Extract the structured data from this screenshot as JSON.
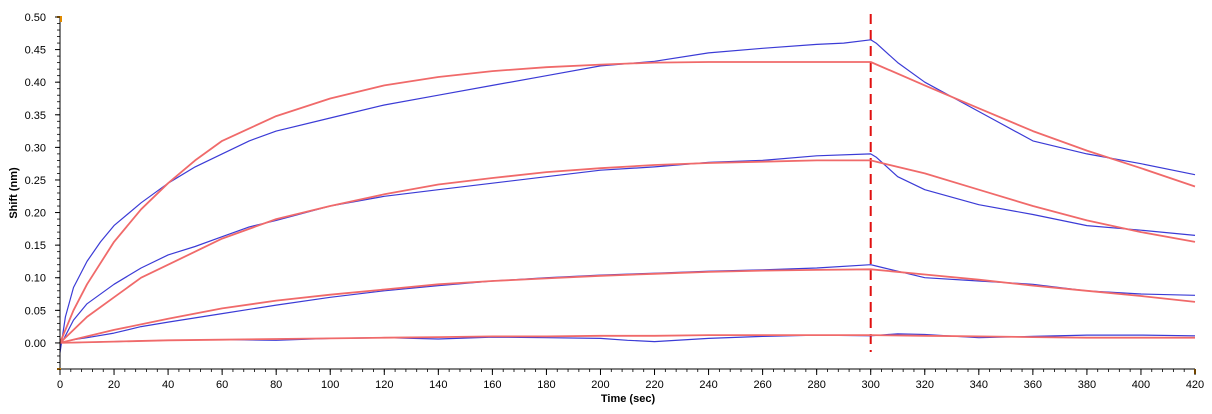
{
  "chart_data": {
    "type": "line",
    "title": "",
    "xlabel": "Time (sec)",
    "ylabel": "Shift (nm)",
    "xlim": [
      0,
      420
    ],
    "ylim": [
      -0.04,
      0.5
    ],
    "x_ticks": [
      0,
      20,
      40,
      60,
      80,
      100,
      120,
      140,
      160,
      180,
      200,
      220,
      240,
      260,
      280,
      300,
      320,
      340,
      360,
      380,
      400,
      420
    ],
    "y_ticks": [
      0.0,
      0.05,
      0.1,
      0.15,
      0.2,
      0.25,
      0.3,
      0.35,
      0.4,
      0.45,
      0.5
    ],
    "y_tick_labels": [
      "0.00",
      "0.05",
      "0.10",
      "0.15",
      "0.20",
      "0.25",
      "0.30",
      "0.35",
      "0.40",
      "0.45",
      "0.50"
    ],
    "grid": false,
    "legend": "none",
    "vline": {
      "x": 300,
      "color": "#e01010",
      "style": "dashed"
    },
    "colors": {
      "measured": "#3b3bd6",
      "fit": "#f06a6a",
      "axis": "#000000",
      "tick_marker": "#e08a00"
    },
    "series": [
      {
        "kind": "measured",
        "x": [
          0,
          2,
          5,
          10,
          15,
          20,
          30,
          40,
          50,
          60,
          70,
          80,
          100,
          120,
          140,
          160,
          180,
          200,
          220,
          240,
          260,
          280,
          290,
          300,
          302,
          310,
          320,
          340,
          360,
          380,
          400,
          420
        ],
        "y": [
          -0.015,
          0.04,
          0.085,
          0.125,
          0.155,
          0.18,
          0.215,
          0.245,
          0.27,
          0.29,
          0.31,
          0.325,
          0.345,
          0.365,
          0.38,
          0.395,
          0.41,
          0.425,
          0.432,
          0.445,
          0.452,
          0.458,
          0.46,
          0.465,
          0.46,
          0.43,
          0.4,
          0.355,
          0.31,
          0.29,
          0.275,
          0.258
        ]
      },
      {
        "kind": "fit",
        "x": [
          0,
          5,
          10,
          20,
          30,
          40,
          50,
          60,
          80,
          100,
          120,
          140,
          160,
          180,
          200,
          220,
          240,
          260,
          280,
          300,
          320,
          340,
          360,
          380,
          400,
          420
        ],
        "y": [
          0.0,
          0.05,
          0.09,
          0.155,
          0.205,
          0.245,
          0.28,
          0.31,
          0.348,
          0.375,
          0.395,
          0.408,
          0.417,
          0.423,
          0.427,
          0.43,
          0.431,
          0.431,
          0.431,
          0.431,
          0.395,
          0.36,
          0.325,
          0.295,
          0.268,
          0.24
        ]
      },
      {
        "kind": "measured",
        "x": [
          0,
          5,
          10,
          20,
          30,
          40,
          50,
          60,
          70,
          80,
          100,
          120,
          140,
          160,
          180,
          200,
          220,
          240,
          260,
          280,
          300,
          302,
          310,
          320,
          340,
          360,
          380,
          400,
          420
        ],
        "y": [
          -0.005,
          0.035,
          0.06,
          0.09,
          0.115,
          0.135,
          0.148,
          0.163,
          0.178,
          0.188,
          0.21,
          0.225,
          0.235,
          0.245,
          0.255,
          0.265,
          0.27,
          0.277,
          0.28,
          0.287,
          0.29,
          0.285,
          0.255,
          0.235,
          0.212,
          0.197,
          0.18,
          0.173,
          0.165
        ]
      },
      {
        "kind": "fit",
        "x": [
          0,
          10,
          20,
          30,
          40,
          60,
          80,
          100,
          120,
          140,
          160,
          180,
          200,
          220,
          240,
          260,
          280,
          300,
          320,
          340,
          360,
          380,
          400,
          420
        ],
        "y": [
          0.0,
          0.04,
          0.07,
          0.1,
          0.12,
          0.16,
          0.19,
          0.21,
          0.228,
          0.243,
          0.253,
          0.262,
          0.268,
          0.273,
          0.276,
          0.278,
          0.28,
          0.28,
          0.26,
          0.235,
          0.21,
          0.188,
          0.17,
          0.155
        ]
      },
      {
        "kind": "measured",
        "x": [
          0,
          5,
          10,
          20,
          30,
          40,
          60,
          80,
          100,
          120,
          140,
          160,
          180,
          200,
          220,
          240,
          260,
          280,
          300,
          302,
          310,
          320,
          340,
          360,
          380,
          400,
          420
        ],
        "y": [
          0.0,
          0.005,
          0.008,
          0.015,
          0.025,
          0.032,
          0.045,
          0.058,
          0.07,
          0.08,
          0.088,
          0.095,
          0.1,
          0.104,
          0.107,
          0.11,
          0.112,
          0.115,
          0.12,
          0.118,
          0.11,
          0.1,
          0.095,
          0.09,
          0.08,
          0.075,
          0.073
        ]
      },
      {
        "kind": "fit",
        "x": [
          0,
          10,
          20,
          40,
          60,
          80,
          100,
          120,
          140,
          160,
          180,
          200,
          220,
          240,
          260,
          280,
          300,
          320,
          340,
          360,
          380,
          400,
          420
        ],
        "y": [
          0.0,
          0.01,
          0.02,
          0.037,
          0.053,
          0.065,
          0.074,
          0.082,
          0.09,
          0.095,
          0.099,
          0.103,
          0.106,
          0.109,
          0.111,
          0.112,
          0.113,
          0.105,
          0.097,
          0.088,
          0.08,
          0.072,
          0.063
        ]
      },
      {
        "kind": "measured",
        "x": [
          0,
          10,
          20,
          40,
          60,
          80,
          100,
          120,
          140,
          160,
          180,
          200,
          210,
          220,
          240,
          260,
          280,
          300,
          310,
          320,
          340,
          360,
          380,
          400,
          420
        ],
        "y": [
          0.0,
          0.001,
          0.002,
          0.004,
          0.005,
          0.004,
          0.007,
          0.008,
          0.006,
          0.009,
          0.008,
          0.007,
          0.004,
          0.002,
          0.007,
          0.01,
          0.012,
          0.011,
          0.014,
          0.013,
          0.008,
          0.01,
          0.012,
          0.012,
          0.011
        ]
      },
      {
        "kind": "fit",
        "x": [
          0,
          20,
          40,
          60,
          80,
          100,
          120,
          140,
          160,
          180,
          200,
          220,
          240,
          260,
          280,
          300,
          320,
          340,
          360,
          380,
          400,
          420
        ],
        "y": [
          0.0,
          0.002,
          0.004,
          0.005,
          0.006,
          0.007,
          0.008,
          0.009,
          0.01,
          0.01,
          0.011,
          0.011,
          0.012,
          0.012,
          0.012,
          0.012,
          0.011,
          0.01,
          0.009,
          0.008,
          0.008,
          0.008
        ]
      }
    ]
  }
}
